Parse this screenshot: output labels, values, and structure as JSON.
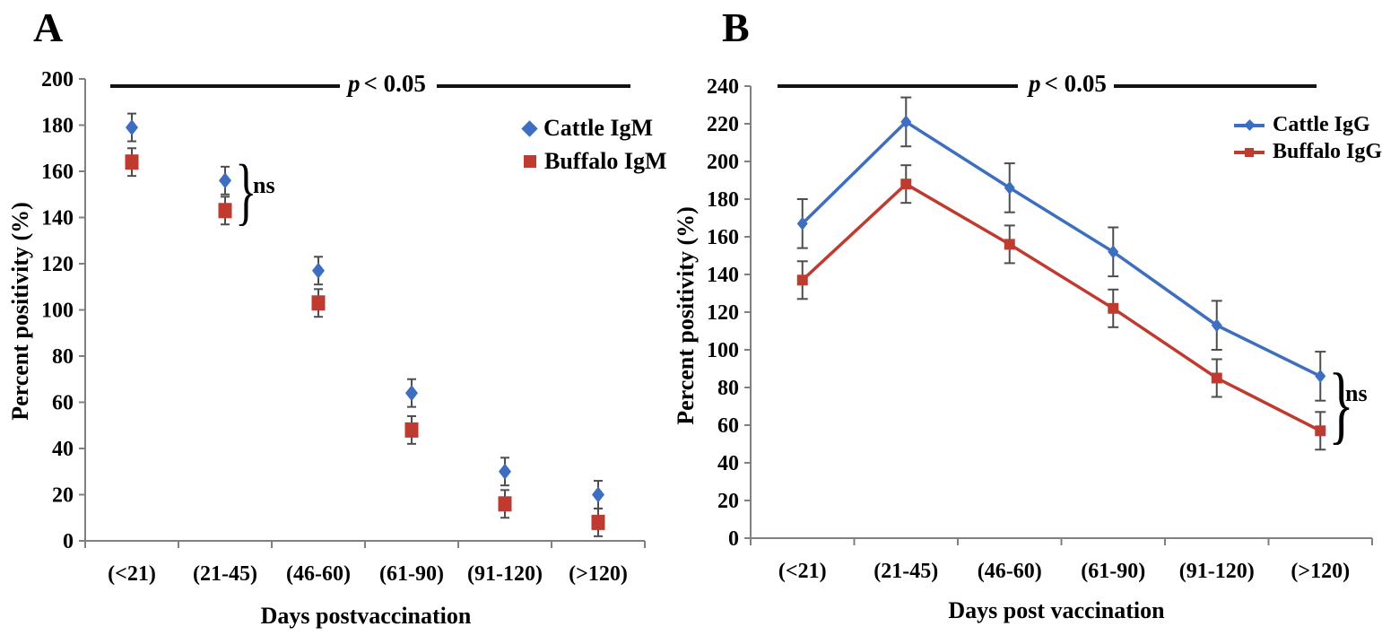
{
  "panels": {
    "a": {
      "label": "A",
      "sig_var": "p",
      "sig_rest": "< 0.05",
      "ns": "ns",
      "brace": "}",
      "ylabel": "Percent positivity (%)",
      "xlabel": "Days postvaccination",
      "legend": {
        "item1": "Cattle IgM",
        "item2": "Buffalo IgM"
      }
    },
    "b": {
      "label": "B",
      "sig_var": "p",
      "sig_rest": "< 0.05",
      "ns": "ns",
      "brace": "}",
      "ylabel": "Percent positivity (%)",
      "xlabel": "Days post vaccination",
      "legend": {
        "item1": "Cattle IgG",
        "item2": "Buffalo IgG"
      }
    }
  },
  "chart_data": [
    {
      "type": "scatter",
      "panel": "A",
      "categories": [
        "(<21)",
        "(21-45)",
        "(46-60)",
        "(61-90)",
        "(91-120)",
        "(>120)"
      ],
      "series": [
        {
          "name": "Cattle IgM",
          "marker": "diamond",
          "color": "#3D6EBF",
          "values": [
            179,
            156,
            117,
            64,
            30,
            20
          ],
          "error": 6
        },
        {
          "name": "Buffalo IgM",
          "marker": "square",
          "color": "#BF3B30",
          "values": [
            164,
            143,
            103,
            48,
            16,
            8
          ],
          "error": 6
        }
      ],
      "xlabel": "Days postvaccination",
      "ylabel": "Percent positivity (%)",
      "ylim": [
        0,
        200
      ],
      "ytick_step": 20,
      "grid": false,
      "lines": false,
      "legend_position": "upper right",
      "annotations": {
        "significance": "p < 0.05",
        "ns": "ns",
        "ns_at_category": "(21-45)"
      },
      "axis_color": "#808080",
      "error_bar_color": "#4d4d4d"
    },
    {
      "type": "line",
      "panel": "B",
      "categories": [
        "(<21)",
        "(21-45)",
        "(46-60)",
        "(61-90)",
        "(91-120)",
        "(>120)"
      ],
      "series": [
        {
          "name": "Cattle IgG",
          "marker": "diamond",
          "color": "#3D6EBF",
          "values": [
            167,
            221,
            186,
            152,
            113,
            86
          ],
          "error": 13
        },
        {
          "name": "Buffalo IgG",
          "marker": "square",
          "color": "#BF3B30",
          "values": [
            137,
            188,
            156,
            122,
            85,
            57
          ],
          "error": 10
        }
      ],
      "xlabel": "Days post vaccination",
      "ylabel": "Percent positivity (%)",
      "ylim": [
        0,
        240
      ],
      "ytick_step": 20,
      "grid": false,
      "lines": true,
      "legend_position": "upper right",
      "annotations": {
        "significance": "p < 0.05",
        "ns": "ns",
        "ns_at_category": "(>120)"
      },
      "axis_color": "#808080",
      "error_bar_color": "#4d4d4d"
    }
  ]
}
